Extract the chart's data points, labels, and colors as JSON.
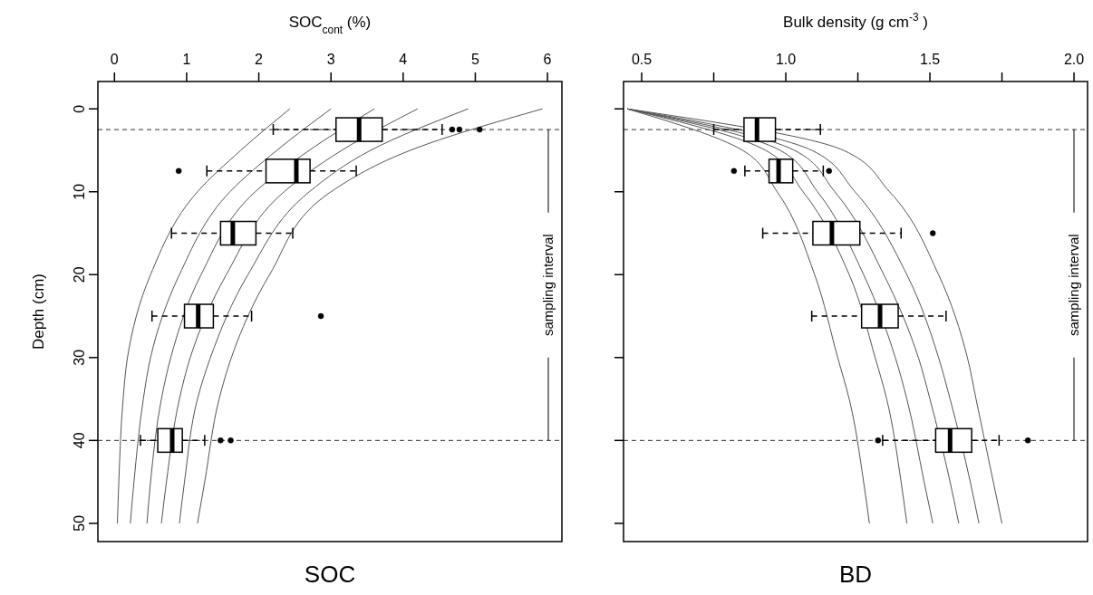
{
  "chart_data": [
    {
      "type": "line",
      "orientation": "horizontal",
      "title": "SOC",
      "xlabel": "SOC$_{cont}$ (%)",
      "ylabel": "Depth (cm)",
      "xlim": [
        -0.23,
        6.2
      ],
      "xticks": [
        0,
        1,
        2,
        3,
        4,
        5,
        6
      ],
      "ylim": [
        52.2,
        -3.3
      ],
      "yticks": [
        0,
        10,
        20,
        30,
        40,
        50
      ],
      "ref_lines": [
        {
          "axis": "y",
          "value": 2.5,
          "line_style": "dashed",
          "color": "#333333"
        },
        {
          "axis": "y",
          "value": 40,
          "line_style": "dashed",
          "color": "#333333"
        }
      ],
      "annotations": [
        "sampling interval"
      ],
      "series": [
        {
          "color": "#555555",
          "x": [
            0,
            5,
            10,
            20,
            30,
            35,
            45,
            50
          ],
          "values": [
            2.43,
            1.75,
            1.15,
            0.5,
            0.18,
            0.12,
            0.06,
            0.04
          ]
        },
        {
          "color": "#555555",
          "x": [
            0,
            5,
            10,
            20,
            30,
            35,
            45,
            50
          ],
          "values": [
            3.0,
            2.25,
            1.6,
            0.9,
            0.5,
            0.4,
            0.27,
            0.22
          ]
        },
        {
          "color": "#555555",
          "x": [
            0,
            5,
            10,
            20,
            30,
            35,
            45,
            50
          ],
          "values": [
            3.6,
            2.7,
            1.95,
            1.2,
            0.78,
            0.65,
            0.5,
            0.45
          ]
        },
        {
          "color": "#555555",
          "x": [
            0,
            5,
            10,
            20,
            30,
            35,
            45,
            50
          ],
          "values": [
            4.2,
            3.15,
            2.35,
            1.55,
            1.05,
            0.9,
            0.72,
            0.65
          ]
        },
        {
          "color": "#555555",
          "x": [
            0,
            5,
            10,
            20,
            30,
            35,
            45,
            50
          ],
          "values": [
            4.9,
            3.55,
            2.7,
            1.85,
            1.33,
            1.15,
            0.97,
            0.9
          ]
        },
        {
          "color": "#555555",
          "x": [
            0,
            5,
            10,
            20,
            30,
            35,
            45,
            50
          ],
          "values": [
            5.93,
            4.1,
            3.0,
            2.15,
            1.62,
            1.45,
            1.25,
            1.15
          ]
        },
        {
          "type": "box",
          "color": "#000000",
          "x": [
            2.5,
            7.5,
            15,
            25,
            40
          ],
          "boxes": [
            {
              "low": 2.2,
              "q1": 3.07,
              "median": 3.39,
              "q3": 3.71,
              "high": 4.54,
              "outliers": [
                4.68,
                4.78,
                5.06
              ]
            },
            {
              "low": 1.28,
              "q1": 2.1,
              "median": 2.52,
              "q3": 2.71,
              "high": 3.35,
              "outliers": [
                0.89
              ]
            },
            {
              "low": 0.79,
              "q1": 1.47,
              "median": 1.64,
              "q3": 1.96,
              "high": 2.47
            },
            {
              "low": 0.52,
              "q1": 0.97,
              "median": 1.16,
              "q3": 1.37,
              "high": 1.9,
              "outliers": [
                2.86
              ]
            },
            {
              "low": 0.36,
              "q1": 0.6,
              "median": 0.8,
              "q3": 0.94,
              "high": 1.25,
              "outliers": [
                1.47,
                1.61
              ]
            }
          ]
        }
      ]
    },
    {
      "type": "line",
      "orientation": "horizontal",
      "title": "BD",
      "xlabel": "Bulk density (g cm$^{-3}$)",
      "xlim": [
        0.437,
        2.047
      ],
      "xticks": [
        0.5,
        {
          "value": 0.75,
          "label": null
        },
        {
          "value": 1,
          "label": "1.0"
        },
        {
          "value": 1.25,
          "label": null
        },
        1.5,
        {
          "value": 1.75,
          "label": null
        },
        {
          "value": 2,
          "label": "2.0"
        }
      ],
      "ylim": [
        52.2,
        -3.3
      ],
      "yticks": [
        0,
        10,
        20,
        30,
        40,
        50
      ],
      "tick_labels": "x",
      "ref_lines": [
        {
          "axis": "y",
          "value": 2.5,
          "line_style": "dashed",
          "color": "#333333"
        },
        {
          "axis": "y",
          "value": 40,
          "line_style": "dashed",
          "color": "#333333"
        }
      ],
      "annotations": [
        "sampling interval"
      ],
      "series": [
        {
          "color": "#555555",
          "x": [
            0,
            5,
            10,
            20,
            30,
            35,
            45,
            50
          ],
          "values": [
            0.45,
            0.85,
            0.97,
            1.1,
            1.18,
            1.22,
            1.27,
            1.29
          ]
        },
        {
          "color": "#555555",
          "x": [
            0,
            5,
            10,
            20,
            30,
            35,
            45,
            50
          ],
          "values": [
            0.45,
            0.93,
            1.06,
            1.22,
            1.31,
            1.35,
            1.4,
            1.42
          ]
        },
        {
          "color": "#555555",
          "x": [
            0,
            5,
            10,
            20,
            30,
            35,
            45,
            50
          ],
          "values": [
            0.45,
            0.98,
            1.11,
            1.27,
            1.38,
            1.42,
            1.48,
            1.51
          ]
        },
        {
          "color": "#555555",
          "x": [
            0,
            5,
            10,
            20,
            30,
            35,
            45,
            50
          ],
          "values": [
            0.45,
            1.03,
            1.17,
            1.34,
            1.46,
            1.5,
            1.57,
            1.6
          ]
        },
        {
          "color": "#555555",
          "x": [
            0,
            5,
            10,
            20,
            30,
            35,
            45,
            50
          ],
          "values": [
            0.45,
            1.09,
            1.24,
            1.42,
            1.53,
            1.57,
            1.64,
            1.67
          ]
        },
        {
          "color": "#555555",
          "x": [
            0,
            5,
            10,
            20,
            30,
            35,
            45,
            50
          ],
          "values": [
            0.45,
            1.2,
            1.36,
            1.53,
            1.63,
            1.66,
            1.72,
            1.75
          ]
        },
        {
          "type": "box",
          "color": "#000000",
          "x": [
            2.5,
            7.5,
            15,
            25,
            40
          ],
          "boxes": [
            {
              "low": 0.75,
              "q1": 0.855,
              "median": 0.9,
              "q3": 0.964,
              "high": 1.12
            },
            {
              "low": 0.858,
              "q1": 0.942,
              "median": 0.975,
              "q3": 1.024,
              "high": 1.13,
              "outliers": [
                0.82,
                1.15
              ]
            },
            {
              "low": 0.92,
              "q1": 1.094,
              "median": 1.16,
              "q3": 1.257,
              "high": 1.4,
              "outliers": [
                1.51
              ]
            },
            {
              "low": 1.09,
              "q1": 1.263,
              "median": 1.327,
              "q3": 1.39,
              "high": 1.556
            },
            {
              "low": 1.336,
              "q1": 1.52,
              "median": 1.57,
              "q3": 1.645,
              "high": 1.74,
              "outliers": [
                1.32,
                1.84
              ]
            }
          ]
        }
      ]
    }
  ]
}
